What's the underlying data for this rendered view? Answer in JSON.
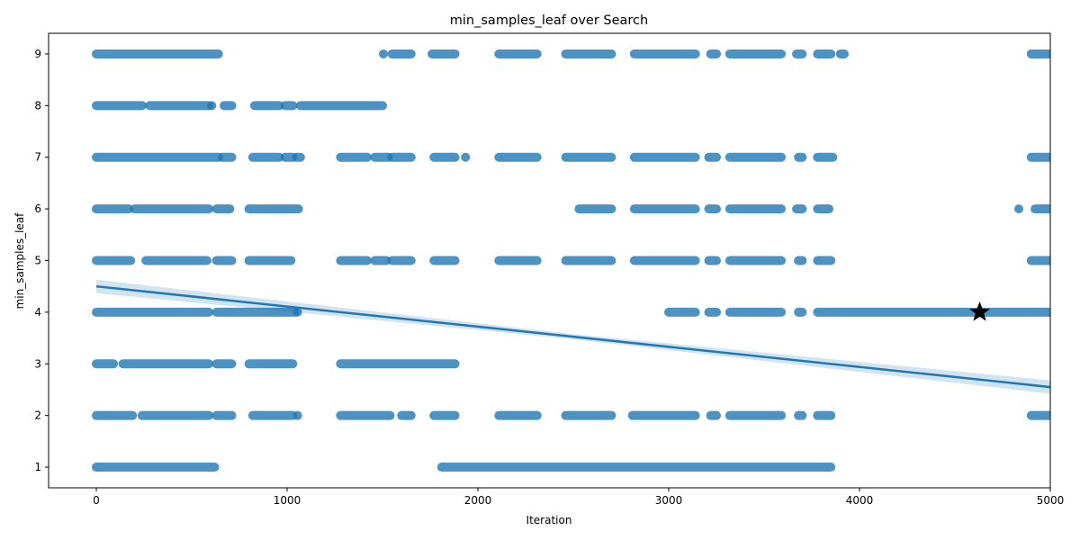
{
  "chart_data": {
    "type": "scatter",
    "title": "min_samples_leaf over Search",
    "xlabel": "Iteration",
    "ylabel": "min_samples_leaf",
    "xlim": [
      -250,
      5000
    ],
    "ylim": [
      0.6,
      9.4
    ],
    "xticks": [
      "0",
      "1000",
      "2000",
      "3000",
      "4000",
      "5000"
    ],
    "yticks": [
      "1",
      "2",
      "3",
      "4",
      "5",
      "6",
      "7",
      "8",
      "9"
    ],
    "grid": false,
    "colors": {
      "points": "#1f77b4",
      "fit_line": "#1f77b4",
      "best_marker": "#000000"
    },
    "series": [
      {
        "type": "scatter",
        "y_levels": [
          {
            "y": 9,
            "x_ranges": [
              [
                0,
                640
              ],
              [
                1500,
                1510
              ],
              [
                1550,
                1650
              ],
              [
                1760,
                1880
              ],
              [
                2110,
                2310
              ],
              [
                2460,
                2700
              ],
              [
                2820,
                3140
              ],
              [
                3220,
                3250
              ],
              [
                3320,
                3590
              ],
              [
                3670,
                3700
              ],
              [
                3780,
                3850
              ],
              [
                3900,
                3920
              ],
              [
                4900,
                5000
              ]
            ]
          },
          {
            "y": 8,
            "x_ranges": [
              [
                0,
                240
              ],
              [
                280,
                590
              ],
              [
                600,
                610
              ],
              [
                670,
                710
              ],
              [
                830,
                960
              ],
              [
                990,
                1030
              ],
              [
                1070,
                1500
              ]
            ]
          },
          {
            "y": 7,
            "x_ranges": [
              [
                0,
                640
              ],
              [
                660,
                710
              ],
              [
                820,
                960
              ],
              [
                990,
                1030
              ],
              [
                1050,
                1070
              ],
              [
                1280,
                1420
              ],
              [
                1460,
                1530
              ],
              [
                1550,
                1650
              ],
              [
                1770,
                1880
              ],
              [
                1930,
                1940
              ],
              [
                2110,
                2310
              ],
              [
                2460,
                2700
              ],
              [
                2820,
                3140
              ],
              [
                3210,
                3250
              ],
              [
                3320,
                3590
              ],
              [
                3680,
                3700
              ],
              [
                3780,
                3860
              ],
              [
                4900,
                5000
              ]
            ]
          },
          {
            "y": 6,
            "x_ranges": [
              [
                0,
                170
              ],
              [
                200,
                590
              ],
              [
                630,
                700
              ],
              [
                800,
                1060
              ],
              [
                2530,
                2700
              ],
              [
                2820,
                3140
              ],
              [
                3210,
                3250
              ],
              [
                3320,
                3590
              ],
              [
                3670,
                3700
              ],
              [
                3780,
                3840
              ],
              [
                4830,
                4840
              ],
              [
                4920,
                5000
              ]
            ]
          },
          {
            "y": 5,
            "x_ranges": [
              [
                0,
                180
              ],
              [
                260,
                580
              ],
              [
                630,
                710
              ],
              [
                800,
                1020
              ],
              [
                1280,
                1420
              ],
              [
                1460,
                1520
              ],
              [
                1550,
                1650
              ],
              [
                1770,
                1880
              ],
              [
                2110,
                2310
              ],
              [
                2460,
                2700
              ],
              [
                2820,
                3140
              ],
              [
                3210,
                3250
              ],
              [
                3320,
                3590
              ],
              [
                3680,
                3700
              ],
              [
                3780,
                3850
              ],
              [
                4900,
                5000
              ]
            ]
          },
          {
            "y": 4,
            "x_ranges": [
              [
                0,
                590
              ],
              [
                630,
                1040
              ],
              [
                1050,
                1060
              ],
              [
                3000,
                3140
              ],
              [
                3210,
                3250
              ],
              [
                3320,
                3590
              ],
              [
                3680,
                3700
              ],
              [
                3780,
                5000
              ]
            ]
          },
          {
            "y": 3,
            "x_ranges": [
              [
                0,
                90
              ],
              [
                140,
                590
              ],
              [
                630,
                710
              ],
              [
                800,
                1030
              ],
              [
                1280,
                1880
              ]
            ]
          },
          {
            "y": 2,
            "x_ranges": [
              [
                0,
                190
              ],
              [
                240,
                590
              ],
              [
                630,
                710
              ],
              [
                820,
                1030
              ],
              [
                1050,
                1060
              ],
              [
                1280,
                1540
              ],
              [
                1600,
                1650
              ],
              [
                1770,
                1880
              ],
              [
                2110,
                2310
              ],
              [
                2460,
                2700
              ],
              [
                2810,
                3140
              ],
              [
                3220,
                3250
              ],
              [
                3320,
                3590
              ],
              [
                3680,
                3700
              ],
              [
                3780,
                3850
              ],
              [
                4900,
                5000
              ]
            ]
          },
          {
            "y": 1,
            "x_ranges": [
              [
                0,
                620
              ],
              [
                1810,
                3850
              ]
            ]
          }
        ]
      },
      {
        "type": "regression_line",
        "points": [
          [
            0,
            4.5
          ],
          [
            5000,
            2.55
          ]
        ],
        "ci_band": true
      },
      {
        "type": "best_marker",
        "marker": "star",
        "point": [
          4630,
          4
        ]
      }
    ]
  }
}
